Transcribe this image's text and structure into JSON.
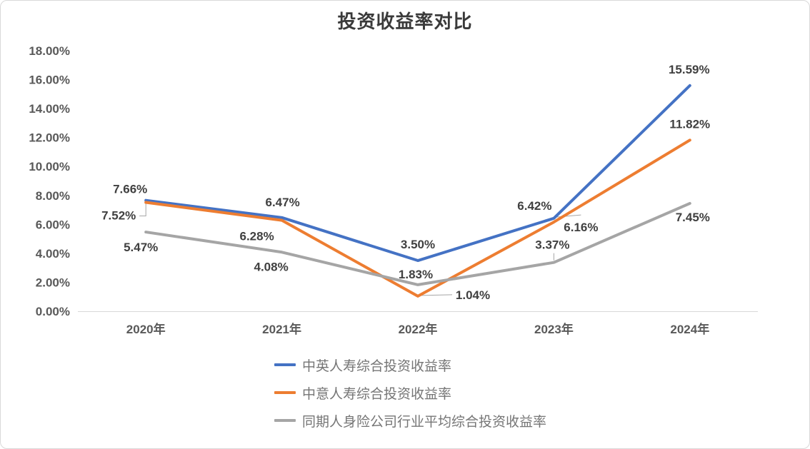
{
  "chart_data": {
    "type": "line",
    "title": "投资收益率对比",
    "categories": [
      "2020年",
      "2021年",
      "2022年",
      "2023年",
      "2024年"
    ],
    "series": [
      {
        "name": "中英人寿综合投资收益率",
        "color": "#4472C4",
        "values": [
          7.66,
          6.47,
          3.5,
          6.42,
          15.59
        ]
      },
      {
        "name": "中意人寿综合投资收益率",
        "color": "#ED7D31",
        "values": [
          7.52,
          6.28,
          1.04,
          6.16,
          11.82
        ]
      },
      {
        "name": "同期人身险公司行业平均综合投资收益率",
        "color": "#A5A5A5",
        "values": [
          5.47,
          4.08,
          1.83,
          3.37,
          7.45
        ]
      }
    ],
    "y_axis": {
      "min": 0,
      "max": 18,
      "step": 2,
      "tick_format": "0.00%"
    },
    "grid": false,
    "legend_position": "bottom-left-column",
    "data_label_format": "0.00%",
    "label_offsets": [
      [
        [
          -22,
          -16
        ],
        [
          1,
          -22
        ],
        [
          0,
          -23
        ],
        [
          -27,
          -18
        ],
        [
          -1,
          -23
        ]
      ],
      [
        [
          -38,
          18
        ],
        [
          -35,
          22
        ],
        [
          77,
          -2
        ],
        [
          38,
          7
        ],
        [
          0,
          -23
        ]
      ],
      [
        [
          -7,
          21
        ],
        [
          -15,
          20
        ],
        [
          -3,
          -15
        ],
        [
          -2,
          -25
        ],
        [
          4,
          19
        ]
      ]
    ],
    "label_leaders": [
      {
        "series": 1,
        "point": 0,
        "path": [
          [
            -9,
            19
          ],
          [
            0,
            19
          ],
          [
            0,
            2
          ]
        ]
      },
      {
        "series": 1,
        "point": 2,
        "path": [
          [
            4,
            -1
          ],
          [
            48,
            -2
          ]
        ]
      },
      {
        "series": 1,
        "point": 3,
        "path": [
          [
            3,
            -7
          ],
          [
            38,
            -10
          ]
        ]
      },
      {
        "series": 2,
        "point": 3,
        "path": [
          [
            0,
            -13
          ],
          [
            0,
            -3
          ]
        ]
      }
    ]
  },
  "styles": {
    "background": "#FFFFFF",
    "frame_border_color": "#D9D9D9",
    "title_color": "#3A3A3A",
    "axis_line_color": "#D9D9D9",
    "tick_label_color": "#595959",
    "data_label_color": "#404040",
    "legend_text_color": "#757575",
    "leader_line_color": "#A6A6A6"
  }
}
